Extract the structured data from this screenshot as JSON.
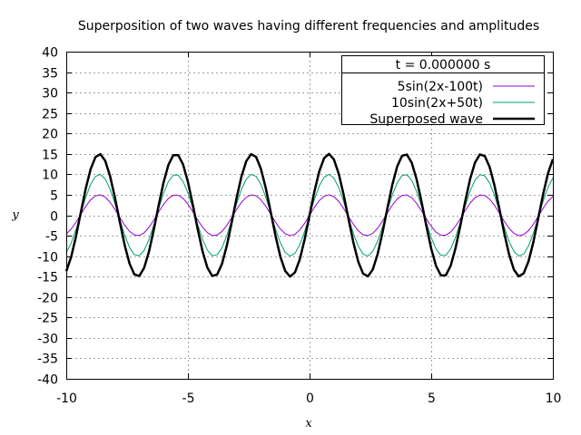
{
  "chart_data": {
    "type": "line",
    "title": "Superposition of two waves having different frequencies and amplitudes",
    "xlabel": "x",
    "ylabel": "y",
    "xlim": [
      -10,
      10
    ],
    "ylim": [
      -40,
      40
    ],
    "xticks": [
      -10,
      -5,
      0,
      5,
      10
    ],
    "yticks": [
      -40,
      -35,
      -30,
      -25,
      -20,
      -15,
      -10,
      -5,
      0,
      5,
      10,
      15,
      20,
      25,
      30,
      35,
      40
    ],
    "grid": true,
    "legend_position": "top-right",
    "legend_title": "t = 0.000000 s",
    "series": [
      {
        "name": "5sin(2x-100t)",
        "amplitude": 5,
        "k": 2,
        "omega": -100,
        "color": "#9400d3",
        "width": 1
      },
      {
        "name": "10sin(2x+50t)",
        "amplitude": 10,
        "k": 2,
        "omega": 50,
        "color": "#009e73",
        "width": 1
      },
      {
        "name": "Superposed wave",
        "amplitude": 15,
        "k": 2,
        "omega": 0,
        "color": "#000000",
        "width": 2.5
      }
    ],
    "t": 0
  }
}
